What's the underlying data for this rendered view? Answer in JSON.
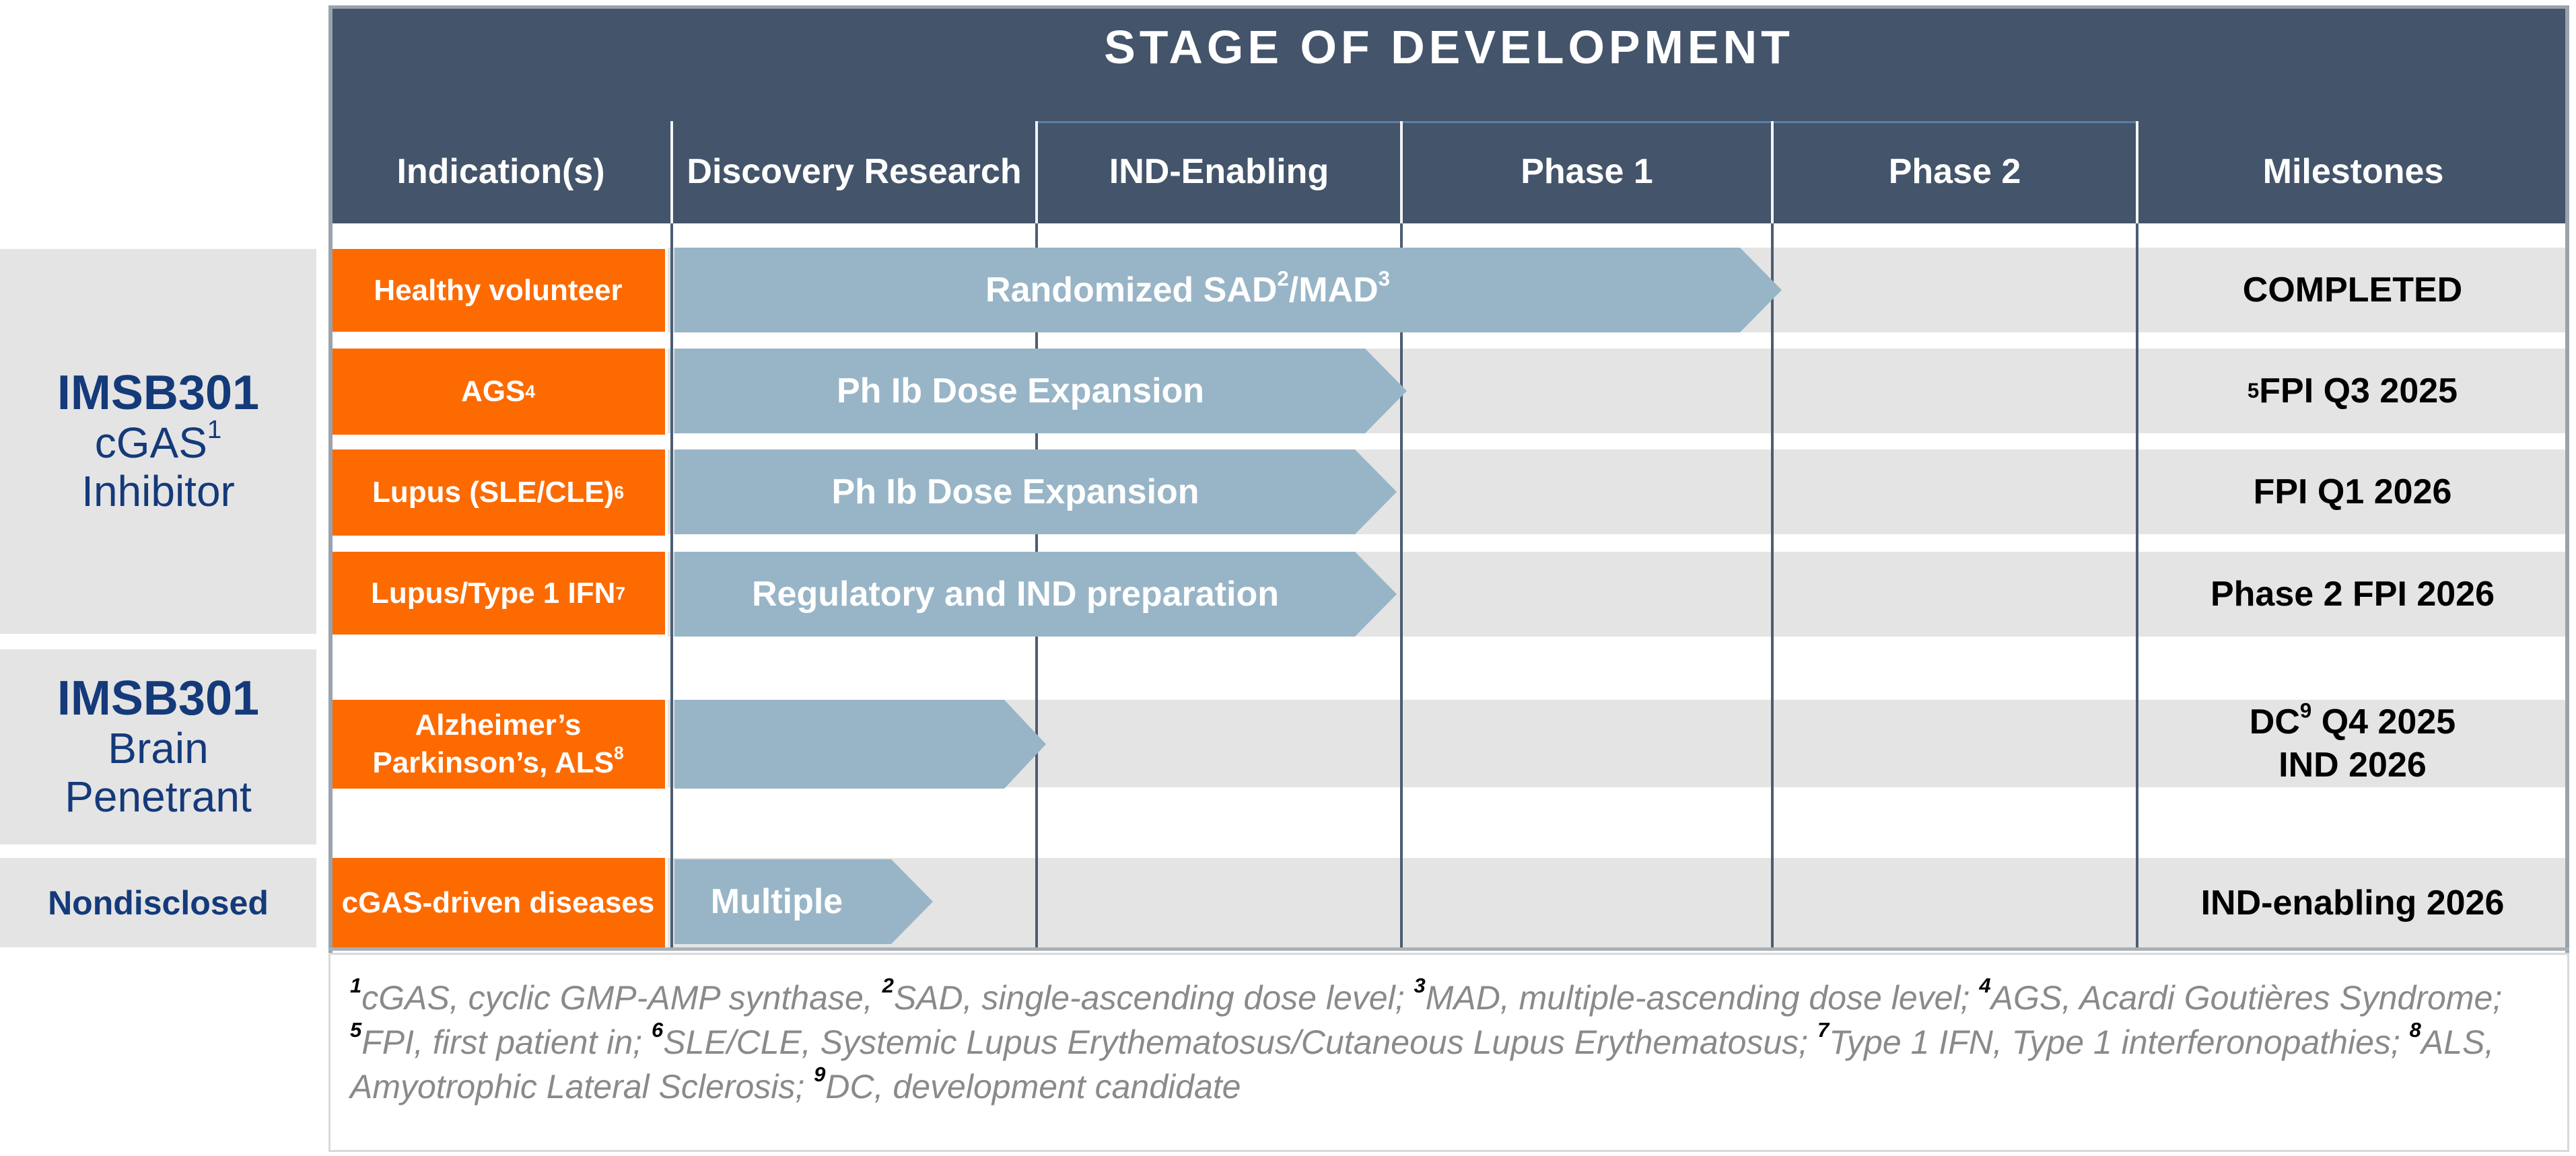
{
  "header": {
    "title": "STAGE OF DEVELOPMENT",
    "columns": [
      "Indication(s)",
      "Discovery Research",
      "IND-Enabling",
      "Phase 1",
      "Phase 2",
      "Milestones"
    ]
  },
  "groups": [
    {
      "name": "IMSB301",
      "sub1": "cGAS",
      "sub1_sup": "1",
      "sub2": "Inhibitor"
    },
    {
      "name": "IMSB301",
      "sub1": "Brain",
      "sub2": "Penetrant"
    },
    {
      "name": "Nondisclosed"
    }
  ],
  "rows": [
    {
      "indication": "Healthy volunteer",
      "indication_sup": "",
      "arrow_a": "Randomized SAD",
      "arrow_sup1": "2",
      "arrow_b": "/MAD",
      "arrow_sup2": "3",
      "milestone": "COMPLETED",
      "progress_end": "Phase 1 (approx. 65% through Phase 2 start)"
    },
    {
      "indication": "AGS",
      "indication_sup": "4",
      "arrow": "Ph Ib Dose Expansion",
      "milestone_sup": "5",
      "milestone": "FPI Q3 2025"
    },
    {
      "indication": "Lupus (SLE/CLE)",
      "indication_sup": "6",
      "arrow": "Ph Ib Dose Expansion",
      "milestone": "FPI Q1 2026"
    },
    {
      "indication": "Lupus/Type 1 IFN",
      "indication_sup": "7",
      "arrow": "Regulatory and IND preparation",
      "milestone": "Phase 2 FPI 2026"
    },
    {
      "indication_line1": "Alzheimer’s",
      "indication_line2": "Parkinson’s, ALS",
      "indication_sup": "8",
      "arrow": "",
      "milestone_a": "DC",
      "milestone_sup": "9",
      "milestone_b": " Q4 2025",
      "milestone_line2": "IND 2026"
    },
    {
      "indication": "cGAS-driven diseases",
      "arrow": "Multiple",
      "milestone": "IND-enabling 2026"
    }
  ],
  "footnotes": [
    {
      "n": "1",
      "t": "cGAS, cyclic GMP-AMP synthase, "
    },
    {
      "n": "2",
      "t": "SAD, single-ascending dose level; "
    },
    {
      "n": "3",
      "t": "MAD, multiple-ascending dose level; "
    },
    {
      "n": "4",
      "t": "AGS, Acardi Goutières Syndrome; "
    },
    {
      "n": "5",
      "t": "FPI, first patient in; "
    },
    {
      "n": "6",
      "t": "SLE/CLE, Systemic Lupus Erythematosus/Cutaneous Lupus Erythematosus; "
    },
    {
      "n": "7",
      "t": "Type 1 IFN, Type 1 interferonopathies; "
    },
    {
      "n": "8",
      "t": "ALS, Amyotrophic Lateral Sclerosis; "
    },
    {
      "n": "9",
      "t": "DC, development candidate"
    }
  ],
  "colors": {
    "header": "#43546b",
    "indication": "#fd6a00",
    "arrow": "#98b5c7",
    "band": "#e4e4e4",
    "group_text": "#143a7a"
  }
}
